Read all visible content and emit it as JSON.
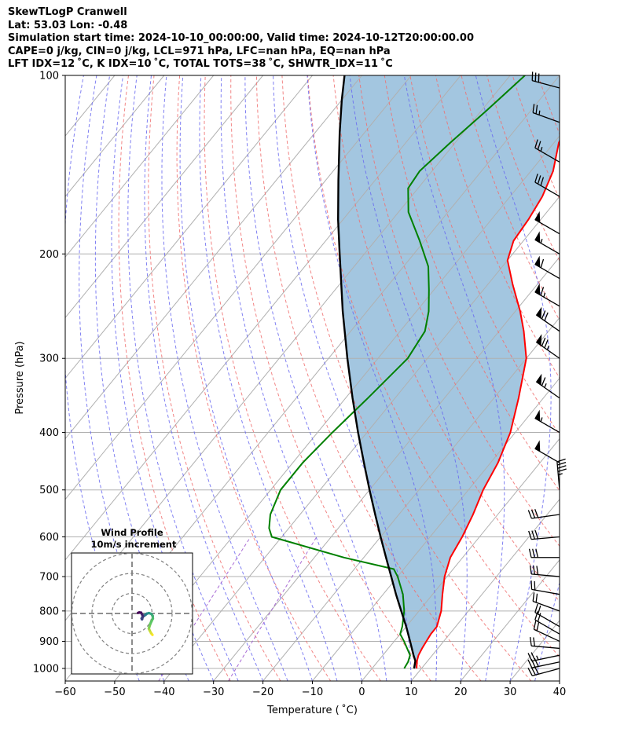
{
  "header": {
    "lines": [
      "SkewTLogP Cranwell",
      "Lat: 53.03   Lon: -0.48",
      "Simulation start time: 2024-10-10_00:00:00, Valid time: 2024-10-12T20:00:00.00",
      "CAPE=0 j/kg, CIN=0 j/kg, LCL=971 hPa, LFC=nan hPa, EQ=nan hPa",
      "LFT IDX=12 ˚C, K IDX=10 ˚C, TOTAL TOTS=38 ˚C, SHWTR_IDX=11 ˚C"
    ]
  },
  "chart_data": {
    "type": "skew-t",
    "xlabel": "Temperature ( ˚C)",
    "ylabel": "Pressure (hPa)",
    "xlim": [
      -60,
      40
    ],
    "ylim": [
      1050,
      100
    ],
    "y_log": true,
    "grid": true,
    "x_ticks": [
      -60,
      -50,
      -40,
      -30,
      -20,
      -10,
      0,
      10,
      20,
      30,
      40
    ],
    "x_tick_labels": [
      "−60",
      "−50",
      "−40",
      "−30",
      "−20",
      "−10",
      "0",
      "10",
      "20",
      "30",
      "40"
    ],
    "y_ticks": [
      1000,
      900,
      800,
      700,
      600,
      500,
      400,
      300,
      200,
      100
    ],
    "y_tick_labels": [
      "1000",
      "900",
      "800",
      "700",
      "600",
      "500",
      "400",
      "300",
      "200",
      "100"
    ],
    "colors": {
      "temperature": "#ff0000",
      "dewpoint": "#008000",
      "parcel": "#000000",
      "shade": "#a3c6e0",
      "dry_adiabat": "#f07070",
      "moist_adiabat": "#6a6af0",
      "mixing_ratio": "#a05cd0",
      "isotherm": "#b0b0b0"
    },
    "temperature": [
      {
        "p": 1000,
        "t": 9.0
      },
      {
        "p": 990,
        "t": 8.6
      },
      {
        "p": 970,
        "t": 7.8
      },
      {
        "p": 950,
        "t": 7.2
      },
      {
        "p": 925,
        "t": 6.8
      },
      {
        "p": 900,
        "t": 6.5
      },
      {
        "p": 875,
        "t": 6.2
      },
      {
        "p": 850,
        "t": 6.2
      },
      {
        "p": 800,
        "t": 4.5
      },
      {
        "p": 750,
        "t": 2.0
      },
      {
        "p": 700,
        "t": -0.5
      },
      {
        "p": 650,
        "t": -2.5
      },
      {
        "p": 600,
        "t": -3.5
      },
      {
        "p": 550,
        "t": -5.0
      },
      {
        "p": 500,
        "t": -7.0
      },
      {
        "p": 450,
        "t": -8.5
      },
      {
        "p": 400,
        "t": -11.0
      },
      {
        "p": 350,
        "t": -15.0
      },
      {
        "p": 300,
        "t": -20.0
      },
      {
        "p": 270,
        "t": -25.0
      },
      {
        "p": 250,
        "t": -29.0
      },
      {
        "p": 225,
        "t": -35.0
      },
      {
        "p": 205,
        "t": -40.0
      },
      {
        "p": 190,
        "t": -42.0
      },
      {
        "p": 175,
        "t": -42.5
      },
      {
        "p": 160,
        "t": -43.5
      },
      {
        "p": 145,
        "t": -45.5
      },
      {
        "p": 130,
        "t": -49.0
      },
      {
        "p": 118,
        "t": -51.0
      },
      {
        "p": 108,
        "t": -52.0
      },
      {
        "p": 100,
        "t": -53.5
      }
    ],
    "dewpoint": [
      {
        "p": 1000,
        "t": 6.5
      },
      {
        "p": 975,
        "t": 6.2
      },
      {
        "p": 950,
        "t": 5.5
      },
      {
        "p": 900,
        "t": 2.0
      },
      {
        "p": 875,
        "t": 0.0
      },
      {
        "p": 850,
        "t": -0.8
      },
      {
        "p": 800,
        "t": -3.0
      },
      {
        "p": 750,
        "t": -6.0
      },
      {
        "p": 700,
        "t": -10.0
      },
      {
        "p": 680,
        "t": -12.0
      },
      {
        "p": 650,
        "t": -24.0
      },
      {
        "p": 600,
        "t": -42.0
      },
      {
        "p": 580,
        "t": -44.0
      },
      {
        "p": 550,
        "t": -46.0
      },
      {
        "p": 500,
        "t": -48.0
      },
      {
        "p": 450,
        "t": -48.0
      },
      {
        "p": 400,
        "t": -47.0
      },
      {
        "p": 350,
        "t": -45.5
      },
      {
        "p": 300,
        "t": -44.0
      },
      {
        "p": 270,
        "t": -45.0
      },
      {
        "p": 250,
        "t": -47.5
      },
      {
        "p": 230,
        "t": -51.0
      },
      {
        "p": 210,
        "t": -55.0
      },
      {
        "p": 190,
        "t": -61.0
      },
      {
        "p": 170,
        "t": -68.0
      },
      {
        "p": 155,
        "t": -72.0
      },
      {
        "p": 145,
        "t": -72.5
      },
      {
        "p": 130,
        "t": -71.0
      },
      {
        "p": 115,
        "t": -69.0
      },
      {
        "p": 100,
        "t": -67.0
      }
    ],
    "parcel": [
      {
        "p": 1000,
        "t": 8.5
      },
      {
        "p": 971,
        "t": 7.5
      },
      {
        "p": 950,
        "t": 6.2
      },
      {
        "p": 900,
        "t": 3.2
      },
      {
        "p": 850,
        "t": 0.0
      },
      {
        "p": 800,
        "t": -3.6
      },
      {
        "p": 750,
        "t": -7.4
      },
      {
        "p": 700,
        "t": -11.3
      },
      {
        "p": 650,
        "t": -15.5
      },
      {
        "p": 600,
        "t": -20.0
      },
      {
        "p": 550,
        "t": -24.8
      },
      {
        "p": 500,
        "t": -30.0
      },
      {
        "p": 450,
        "t": -35.6
      },
      {
        "p": 400,
        "t": -41.8
      },
      {
        "p": 350,
        "t": -48.6
      },
      {
        "p": 300,
        "t": -56.2
      },
      {
        "p": 250,
        "t": -64.9
      },
      {
        "p": 200,
        "t": -75.0
      },
      {
        "p": 175,
        "t": -81.0
      },
      {
        "p": 150,
        "t": -87.5
      },
      {
        "p": 125,
        "t": -95.0
      },
      {
        "p": 110,
        "t": -100.0
      },
      {
        "p": 100,
        "t": -103.5
      }
    ],
    "wind_barbs": [
      {
        "p": 1000,
        "speed_kt": 28,
        "dir_deg": 255
      },
      {
        "p": 975,
        "speed_kt": 28,
        "dir_deg": 258
      },
      {
        "p": 950,
        "speed_kt": 25,
        "dir_deg": 258
      },
      {
        "p": 925,
        "speed_kt": 22,
        "dir_deg": 275
      },
      {
        "p": 900,
        "speed_kt": 20,
        "dir_deg": 295
      },
      {
        "p": 875,
        "speed_kt": 20,
        "dir_deg": 300
      },
      {
        "p": 850,
        "speed_kt": 20,
        "dir_deg": 300
      },
      {
        "p": 800,
        "speed_kt": 20,
        "dir_deg": 290
      },
      {
        "p": 750,
        "speed_kt": 20,
        "dir_deg": 280
      },
      {
        "p": 700,
        "speed_kt": 30,
        "dir_deg": 275
      },
      {
        "p": 650,
        "speed_kt": 30,
        "dir_deg": 270
      },
      {
        "p": 600,
        "speed_kt": 30,
        "dir_deg": 265
      },
      {
        "p": 550,
        "speed_kt": 30,
        "dir_deg": 262
      },
      {
        "p": 500,
        "speed_kt": 45,
        "dir_deg": 355
      },
      {
        "p": 450,
        "speed_kt": 50,
        "dir_deg": 300
      },
      {
        "p": 400,
        "speed_kt": 55,
        "dir_deg": 300
      },
      {
        "p": 350,
        "speed_kt": 65,
        "dir_deg": 305
      },
      {
        "p": 300,
        "speed_kt": 75,
        "dir_deg": 305
      },
      {
        "p": 270,
        "speed_kt": 70,
        "dir_deg": 305
      },
      {
        "p": 245,
        "speed_kt": 65,
        "dir_deg": 300
      },
      {
        "p": 220,
        "speed_kt": 60,
        "dir_deg": 300
      },
      {
        "p": 200,
        "speed_kt": 55,
        "dir_deg": 300
      },
      {
        "p": 185,
        "speed_kt": 50,
        "dir_deg": 300
      },
      {
        "p": 160,
        "speed_kt": 30,
        "dir_deg": 300
      },
      {
        "p": 140,
        "speed_kt": 25,
        "dir_deg": 300
      },
      {
        "p": 120,
        "speed_kt": 25,
        "dir_deg": 290
      },
      {
        "p": 105,
        "speed_kt": 30,
        "dir_deg": 285
      }
    ],
    "inset": {
      "title_line1": "Wind Profile",
      "title_line2": "10m/s increment",
      "rings_ms": [
        10,
        20,
        30
      ],
      "hodograph": [
        {
          "u": 10.2,
          "v": -10.7
        },
        {
          "u": 9.5,
          "v": -9.8
        },
        {
          "u": 8.8,
          "v": -8.5
        },
        {
          "u": 8.4,
          "v": -7.6
        },
        {
          "u": 8.6,
          "v": -6.8
        },
        {
          "u": 9.2,
          "v": -5.0
        },
        {
          "u": 10.4,
          "v": -2.5
        },
        {
          "u": 10.3,
          "v": -1.2
        },
        {
          "u": 9.6,
          "v": -0.2
        },
        {
          "u": 8.4,
          "v": 0.2
        },
        {
          "u": 7.4,
          "v": -0.1
        },
        {
          "u": 6.8,
          "v": -0.6
        },
        {
          "u": 6.1,
          "v": -1.1
        },
        {
          "u": 5.3,
          "v": -1.7
        },
        {
          "u": 4.8,
          "v": -2.5
        },
        {
          "u": 5.0,
          "v": -2.9
        },
        {
          "u": 5.4,
          "v": -1.5
        },
        {
          "u": 5.1,
          "v": -0.6
        },
        {
          "u": 4.5,
          "v": 0.4
        },
        {
          "u": 3.6,
          "v": 0.5
        },
        {
          "u": 3.0,
          "v": 0.3
        }
      ],
      "colormap": [
        "#fde725",
        "#5ec962",
        "#21918c",
        "#3b528b",
        "#440154"
      ]
    }
  }
}
